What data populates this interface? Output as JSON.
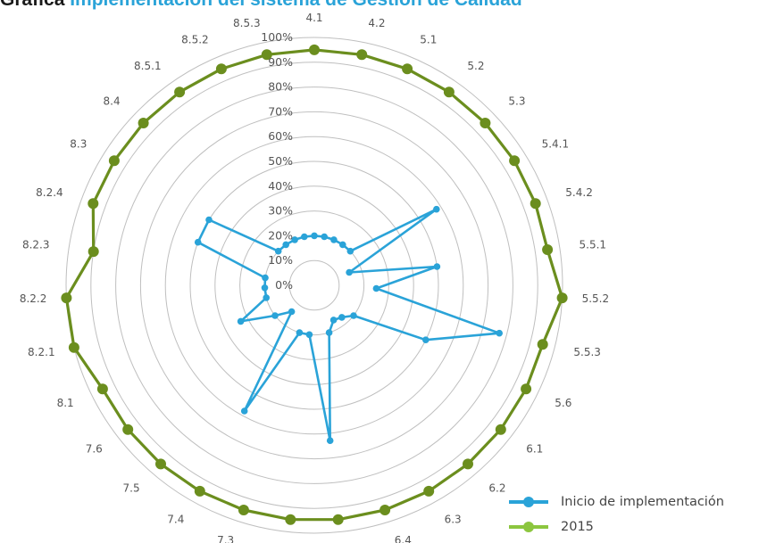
{
  "title": {
    "prefix": "Gráfica",
    "accent": "Implementación del sistema de Gestión de Calidad"
  },
  "chart_data": {
    "type": "radar",
    "title": "Gráfica Implementación del sistema de Gestión de Calidad",
    "categories": [
      "4.1",
      "4.2",
      "5.1",
      "5.2",
      "5.3",
      "5.4.1",
      "5.4.2",
      "5.5.1",
      "5.5.2",
      "5.5.3",
      "5.6",
      "6.1",
      "6.2",
      "6.3",
      "6.4",
      "7.1",
      "7.2",
      "7.3",
      "7.4",
      "7.5",
      "7.6",
      "8.1",
      "8.2.1",
      "8.2.2",
      "8.2.3",
      "8.2.4",
      "8.3",
      "8.4",
      "8.5.1",
      "8.5.2",
      "8.5.3"
    ],
    "radial_ticks": [
      "0%",
      "10%",
      "20%",
      "30%",
      "40%",
      "50%",
      "60%",
      "70%",
      "80%",
      "90%",
      "100%"
    ],
    "rmax": 100,
    "series": [
      {
        "name": "Inicio de implementación",
        "color": "#2aa3d8",
        "values": [
          20,
          20,
          20,
          20,
          20,
          58,
          15,
          50,
          25,
          77,
          50,
          20,
          17,
          16,
          20,
          63,
          20,
          20,
          58,
          14,
          20,
          33,
          20,
          20,
          20,
          50,
          50,
          20,
          20,
          20,
          20
        ]
      },
      {
        "name": "2015",
        "color": "#6b8e1e",
        "legend_color": "#8cc63f",
        "values": [
          95,
          95,
          95,
          95,
          95,
          95,
          95,
          95,
          100,
          95,
          95,
          95,
          95,
          95,
          95,
          95,
          95,
          95,
          95,
          95,
          95,
          95,
          100,
          100,
          90,
          95,
          95,
          95,
          95,
          95,
          95
        ]
      }
    ],
    "grid": true,
    "legend_position": "bottom-right"
  },
  "legend": {
    "items": [
      {
        "label": "Inicio de implementación"
      },
      {
        "label": "2015"
      }
    ]
  }
}
